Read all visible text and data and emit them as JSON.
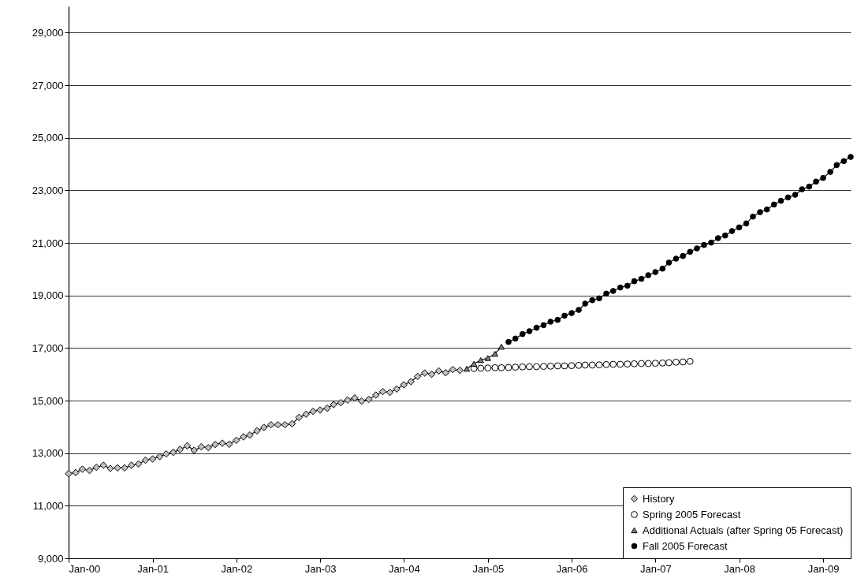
{
  "chart_data": {
    "type": "line",
    "xlim": [
      "2000-01",
      "2009-05"
    ],
    "xticks": [
      {
        "value": "2000-01",
        "label": "Jan-00"
      },
      {
        "value": "2001-01",
        "label": "Jan-01"
      },
      {
        "value": "2002-01",
        "label": "Jan-02"
      },
      {
        "value": "2003-01",
        "label": "Jan-03"
      },
      {
        "value": "2004-01",
        "label": "Jan-04"
      },
      {
        "value": "2005-01",
        "label": "Jan-05"
      },
      {
        "value": "2006-01",
        "label": "Jan-06"
      },
      {
        "value": "2007-01",
        "label": "Jan-07"
      },
      {
        "value": "2008-01",
        "label": "Jan-08"
      },
      {
        "value": "2009-01",
        "label": "Jan-09"
      }
    ],
    "ylim": [
      9000,
      30000
    ],
    "yticks": [
      {
        "value": 9000,
        "label": "9,000"
      },
      {
        "value": 11000,
        "label": "11,000"
      },
      {
        "value": 13000,
        "label": "13,000"
      },
      {
        "value": 15000,
        "label": "15,000"
      },
      {
        "value": 17000,
        "label": "17,000"
      },
      {
        "value": 19000,
        "label": "19,000"
      },
      {
        "value": 21000,
        "label": "21,000"
      },
      {
        "value": 23000,
        "label": "23,000"
      },
      {
        "value": 25000,
        "label": "25,000"
      },
      {
        "value": 27000,
        "label": "27,000"
      },
      {
        "value": 29000,
        "label": "29,000"
      }
    ],
    "grid": "y",
    "legend": "bottom right",
    "line_style": "solid",
    "series": [
      {
        "name": "History",
        "color": "#c0c0c0",
        "marker": "diamond",
        "x": [
          "2000-01",
          "2000-02",
          "2000-03",
          "2000-04",
          "2000-05",
          "2000-06",
          "2000-07",
          "2000-08",
          "2000-09",
          "2000-10",
          "2000-11",
          "2000-12",
          "2001-01",
          "2001-02",
          "2001-03",
          "2001-04",
          "2001-05",
          "2001-06",
          "2001-07",
          "2001-08",
          "2001-09",
          "2001-10",
          "2001-11",
          "2001-12",
          "2002-01",
          "2002-02",
          "2002-03",
          "2002-04",
          "2002-05",
          "2002-06",
          "2002-07",
          "2002-08",
          "2002-09",
          "2002-10",
          "2002-11",
          "2002-12",
          "2003-01",
          "2003-02",
          "2003-03",
          "2003-04",
          "2003-05",
          "2003-06",
          "2003-07",
          "2003-08",
          "2003-09",
          "2003-10",
          "2003-11",
          "2003-12",
          "2004-01",
          "2004-02",
          "2004-03",
          "2004-04",
          "2004-05",
          "2004-06",
          "2004-07",
          "2004-08",
          "2004-09"
        ],
        "values": [
          12220,
          12260,
          12390,
          12340,
          12460,
          12540,
          12420,
          12440,
          12440,
          12540,
          12590,
          12730,
          12780,
          12870,
          12970,
          13030,
          13140,
          13280,
          13110,
          13240,
          13210,
          13330,
          13380,
          13340,
          13490,
          13620,
          13690,
          13850,
          13980,
          14080,
          14080,
          14080,
          14120,
          14360,
          14480,
          14590,
          14640,
          14710,
          14850,
          14920,
          15020,
          15100,
          14980,
          15050,
          15210,
          15340,
          15310,
          15440,
          15600,
          15720,
          15920,
          16050,
          16000,
          16130,
          16060,
          16180,
          16150
        ]
      },
      {
        "name": "Spring 2005 Forecast",
        "color": "#ffffff",
        "marker": "circle",
        "x": [
          "2004-11",
          "2004-12",
          "2005-01",
          "2005-02",
          "2005-03",
          "2005-04",
          "2005-05",
          "2005-06",
          "2005-07",
          "2005-08",
          "2005-09",
          "2005-10",
          "2005-11",
          "2005-12",
          "2006-01",
          "2006-02",
          "2006-03",
          "2006-04",
          "2006-05",
          "2006-06",
          "2006-07",
          "2006-08",
          "2006-09",
          "2006-10",
          "2006-11",
          "2006-12",
          "2007-01",
          "2007-02",
          "2007-03",
          "2007-04",
          "2007-05",
          "2007-06"
        ],
        "values": [
          16220,
          16230,
          16240,
          16250,
          16250,
          16260,
          16270,
          16280,
          16290,
          16290,
          16300,
          16310,
          16320,
          16320,
          16330,
          16340,
          16350,
          16350,
          16360,
          16370,
          16380,
          16380,
          16390,
          16400,
          16410,
          16410,
          16420,
          16430,
          16440,
          16460,
          16470,
          16490
        ]
      },
      {
        "name": "Additional Actuals (after Spring 05 Forecast)",
        "color": "#808080",
        "marker": "triangle",
        "x": [
          "2004-10",
          "2004-11",
          "2004-12",
          "2005-01",
          "2005-02",
          "2005-03"
        ],
        "values": [
          16210,
          16400,
          16540,
          16620,
          16780,
          17050
        ]
      },
      {
        "name": "Fall 2005 Forecast",
        "color": "#000000",
        "marker": "circle",
        "x": [
          "2005-04",
          "2005-05",
          "2005-06",
          "2005-07",
          "2005-08",
          "2005-09",
          "2005-10",
          "2005-11",
          "2005-12",
          "2006-01",
          "2006-02",
          "2006-03",
          "2006-04",
          "2006-05",
          "2006-06",
          "2006-07",
          "2006-08",
          "2006-09",
          "2006-10",
          "2006-11",
          "2006-12",
          "2007-01",
          "2007-02",
          "2007-03",
          "2007-04",
          "2007-05",
          "2007-06",
          "2007-07",
          "2007-08",
          "2007-09",
          "2007-10",
          "2007-11",
          "2007-12",
          "2008-01",
          "2008-02",
          "2008-03",
          "2008-04",
          "2008-05",
          "2008-06",
          "2008-07",
          "2008-08",
          "2008-09",
          "2008-10",
          "2008-11",
          "2008-12",
          "2009-01",
          "2009-02",
          "2009-03",
          "2009-04",
          "2009-05"
        ],
        "values": [
          17230,
          17360,
          17530,
          17640,
          17770,
          17870,
          18000,
          18070,
          18230,
          18330,
          18450,
          18690,
          18820,
          18890,
          19070,
          19170,
          19300,
          19370,
          19540,
          19630,
          19770,
          19890,
          20020,
          20250,
          20400,
          20500,
          20660,
          20790,
          20920,
          21010,
          21180,
          21280,
          21450,
          21590,
          21740,
          22000,
          22170,
          22270,
          22460,
          22600,
          22730,
          22830,
          23040,
          23140,
          23330,
          23470,
          23700,
          23960,
          24110,
          24270
        ]
      }
    ]
  }
}
